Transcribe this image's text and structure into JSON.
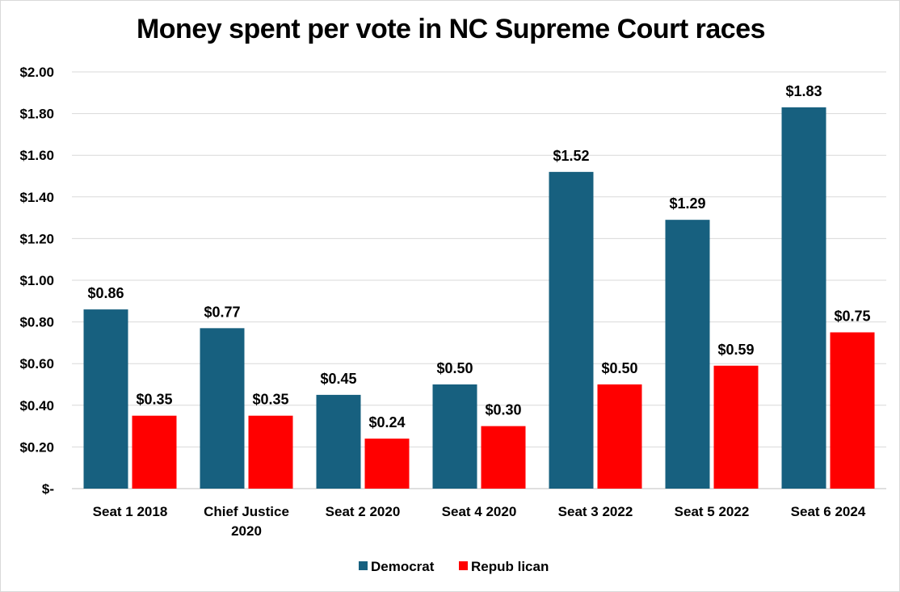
{
  "chart_data": {
    "type": "bar",
    "title": "Money spent per vote in NC Supreme Court races",
    "xlabel": "",
    "ylabel": "",
    "categories": [
      [
        "Seat 1 2018"
      ],
      [
        "Chief Justice",
        "2020"
      ],
      [
        "Seat 2 2020"
      ],
      [
        "Seat 4 2020"
      ],
      [
        "Seat 3 2022"
      ],
      [
        "Seat 5 2022"
      ],
      [
        "Seat 6 2024"
      ]
    ],
    "series": [
      {
        "name": "Democrat",
        "color": "#17607f",
        "values": [
          0.86,
          0.77,
          0.45,
          0.5,
          1.52,
          1.29,
          1.83
        ],
        "labels": [
          "$0.86",
          "$0.77",
          "$0.45",
          "$0.50",
          "$1.52",
          "$1.29",
          "$1.83"
        ]
      },
      {
        "name": "Repub lican",
        "color": "#ff0000",
        "values": [
          0.35,
          0.35,
          0.24,
          0.3,
          0.5,
          0.59,
          0.75
        ],
        "labels": [
          "$0.35",
          "$0.35",
          "$0.24",
          "$0.30",
          "$0.50",
          "$0.59",
          "$0.75"
        ]
      }
    ],
    "ylim": [
      0,
      2.0
    ],
    "y_ticks": [
      {
        "value": 0.0,
        "label": "$-"
      },
      {
        "value": 0.2,
        "label": "$0.20"
      },
      {
        "value": 0.4,
        "label": "$0.40"
      },
      {
        "value": 0.6,
        "label": "$0.60"
      },
      {
        "value": 0.8,
        "label": "$0.80"
      },
      {
        "value": 1.0,
        "label": "$1.00"
      },
      {
        "value": 1.2,
        "label": "$1.20"
      },
      {
        "value": 1.4,
        "label": "$1.40"
      },
      {
        "value": 1.6,
        "label": "$1.60"
      },
      {
        "value": 1.8,
        "label": "$1.80"
      },
      {
        "value": 2.0,
        "label": "$2.00"
      }
    ],
    "grid": true,
    "legend_position": "bottom-center"
  }
}
